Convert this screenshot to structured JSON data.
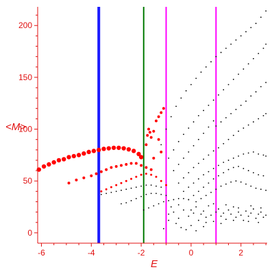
{
  "chart_data": {
    "type": "scatter",
    "title": "",
    "xlabel": "E",
    "ylabel": "<M>",
    "xlim": [
      -6.15,
      3.05
    ],
    "ylim": [
      -10,
      218
    ],
    "xticks": [
      -6,
      -4,
      -2,
      0,
      2
    ],
    "yticks": [
      0,
      50,
      100,
      150,
      200
    ],
    "axis_color": "#e01010",
    "grid": false,
    "vertical_lines": [
      {
        "x": -3.7,
        "color": "#1a1aff"
      },
      {
        "x": -1.9,
        "color": "#007a00"
      },
      {
        "x": -1.0,
        "color": "#ff00ff"
      },
      {
        "x": 1.0,
        "color": "#ff00ff"
      }
    ],
    "series": [
      {
        "color": "#ff0000",
        "marker": "large",
        "points": [
          [
            -6.1,
            61
          ],
          [
            -5.9,
            64
          ],
          [
            -5.7,
            66
          ],
          [
            -5.5,
            68
          ],
          [
            -5.3,
            70
          ],
          [
            -5.1,
            71
          ],
          [
            -4.9,
            73
          ],
          [
            -4.7,
            74
          ],
          [
            -4.5,
            75
          ],
          [
            -4.3,
            76.5
          ],
          [
            -4.1,
            78
          ],
          [
            -3.9,
            79
          ],
          [
            -3.7,
            80
          ],
          [
            -3.5,
            81
          ],
          [
            -3.3,
            81.5
          ],
          [
            -3.1,
            82
          ],
          [
            -2.9,
            82
          ],
          [
            -2.7,
            81.5
          ],
          [
            -2.5,
            80.5
          ],
          [
            -2.3,
            79
          ],
          [
            -2.1,
            76
          ],
          [
            -2.0,
            73
          ]
        ]
      },
      {
        "color": "#ff0000",
        "marker": "medium",
        "points": [
          [
            -4.9,
            48
          ],
          [
            -4.6,
            51
          ],
          [
            -4.3,
            53
          ],
          [
            -4.0,
            55
          ],
          [
            -3.8,
            57
          ],
          [
            -3.6,
            59
          ],
          [
            -3.4,
            61
          ],
          [
            -3.2,
            63
          ],
          [
            -3.0,
            64
          ],
          [
            -2.8,
            65
          ],
          [
            -2.6,
            66
          ],
          [
            -2.4,
            67
          ],
          [
            -2.2,
            67
          ],
          [
            -2.0,
            65
          ],
          [
            -1.8,
            63
          ],
          [
            -1.6,
            61
          ]
        ]
      },
      {
        "color": "#ff0000",
        "marker": "small",
        "points": [
          [
            -3.6,
            40
          ],
          [
            -3.4,
            42
          ],
          [
            -3.2,
            44
          ],
          [
            -3.0,
            46
          ],
          [
            -2.8,
            48
          ],
          [
            -2.6,
            50
          ],
          [
            -2.4,
            52
          ],
          [
            -2.2,
            54
          ],
          [
            -2.0,
            56
          ],
          [
            -1.8,
            57
          ],
          [
            -1.6,
            56
          ],
          [
            -1.4,
            54
          ],
          [
            -1.2,
            50
          ],
          [
            -1.0,
            46
          ]
        ]
      },
      {
        "color": "#ff0000",
        "marker": "medium",
        "points": [
          [
            -1.8,
            85
          ],
          [
            -1.75,
            94
          ],
          [
            -1.7,
            100
          ],
          [
            -1.65,
            97
          ],
          [
            -1.6,
            92
          ],
          [
            -1.5,
            98
          ],
          [
            -1.4,
            108
          ],
          [
            -1.3,
            112
          ],
          [
            -1.2,
            116
          ],
          [
            -1.1,
            120
          ],
          [
            -1.3,
            90
          ],
          [
            -1.2,
            78
          ],
          [
            -1.5,
            72
          ]
        ]
      },
      {
        "color": "#000000",
        "marker": "tiny",
        "points": [
          [
            -1.2,
            85
          ],
          [
            -1.0,
            100
          ],
          [
            -0.8,
            112
          ],
          [
            -0.6,
            122
          ],
          [
            -0.4,
            130
          ],
          [
            -0.2,
            137
          ],
          [
            0.0,
            143
          ],
          [
            0.2,
            149
          ],
          [
            0.4,
            155
          ],
          [
            0.6,
            160
          ],
          [
            0.8,
            165
          ],
          [
            1.0,
            170
          ],
          [
            1.2,
            174
          ],
          [
            1.4,
            178
          ],
          [
            1.6,
            182
          ],
          [
            1.8,
            186
          ],
          [
            2.0,
            190
          ],
          [
            2.2,
            194
          ],
          [
            2.4,
            198
          ],
          [
            2.6,
            202
          ],
          [
            2.8,
            208
          ],
          [
            3.0,
            214
          ]
        ]
      },
      {
        "color": "#000000",
        "marker": "tiny",
        "points": [
          [
            -0.9,
            72
          ],
          [
            -0.7,
            80
          ],
          [
            -0.5,
            88
          ],
          [
            -0.3,
            95
          ],
          [
            -0.1,
            101
          ],
          [
            0.1,
            107
          ],
          [
            0.3,
            113
          ],
          [
            0.5,
            118
          ],
          [
            0.7,
            123
          ],
          [
            0.9,
            128
          ],
          [
            1.1,
            133
          ],
          [
            1.3,
            138
          ],
          [
            1.5,
            143
          ],
          [
            1.7,
            148
          ],
          [
            1.9,
            153
          ],
          [
            2.1,
            158
          ],
          [
            2.3,
            163
          ],
          [
            2.5,
            168
          ],
          [
            2.7,
            173
          ],
          [
            2.9,
            178
          ],
          [
            3.0,
            182
          ]
        ]
      },
      {
        "color": "#000000",
        "marker": "tiny",
        "points": [
          [
            -0.7,
            60
          ],
          [
            -0.5,
            66
          ],
          [
            -0.3,
            72
          ],
          [
            -0.1,
            78
          ],
          [
            0.1,
            84
          ],
          [
            0.3,
            90
          ],
          [
            0.5,
            96
          ],
          [
            0.7,
            102
          ],
          [
            0.9,
            108
          ],
          [
            1.0,
            103
          ],
          [
            1.2,
            107
          ],
          [
            1.4,
            111
          ],
          [
            1.6,
            115
          ],
          [
            1.8,
            119
          ],
          [
            2.0,
            123
          ],
          [
            2.2,
            127
          ],
          [
            2.4,
            132
          ],
          [
            2.6,
            136
          ],
          [
            2.8,
            141
          ],
          [
            3.0,
            145
          ]
        ]
      },
      {
        "color": "#000000",
        "marker": "tiny",
        "points": [
          [
            -0.5,
            48
          ],
          [
            -0.3,
            53
          ],
          [
            -0.1,
            58
          ],
          [
            0.1,
            63
          ],
          [
            0.3,
            67
          ],
          [
            0.5,
            71
          ],
          [
            0.7,
            75
          ],
          [
            0.9,
            79
          ],
          [
            1.1,
            82
          ],
          [
            1.3,
            86
          ],
          [
            1.5,
            90
          ],
          [
            1.7,
            94
          ],
          [
            1.9,
            98
          ],
          [
            2.1,
            101
          ],
          [
            2.3,
            104
          ],
          [
            2.5,
            107
          ],
          [
            2.7,
            110
          ],
          [
            2.9,
            113
          ],
          [
            3.0,
            115
          ]
        ]
      },
      {
        "color": "#000000",
        "marker": "tiny",
        "points": [
          [
            -0.3,
            40
          ],
          [
            -0.1,
            44
          ],
          [
            0.1,
            48
          ],
          [
            0.3,
            52
          ],
          [
            0.5,
            56
          ],
          [
            0.7,
            59
          ],
          [
            0.9,
            62
          ],
          [
            1.1,
            65
          ],
          [
            1.3,
            68
          ],
          [
            1.5,
            70
          ],
          [
            1.7,
            72
          ],
          [
            1.9,
            74
          ],
          [
            2.1,
            76
          ],
          [
            2.3,
            77
          ],
          [
            2.5,
            78
          ],
          [
            2.7,
            76
          ],
          [
            2.9,
            75
          ],
          [
            3.0,
            74
          ]
        ]
      },
      {
        "color": "#000000",
        "marker": "tiny",
        "points": [
          [
            -0.1,
            32
          ],
          [
            0.1,
            36
          ],
          [
            0.3,
            40
          ],
          [
            0.5,
            44
          ],
          [
            0.7,
            48
          ],
          [
            0.9,
            52
          ],
          [
            1.1,
            55
          ],
          [
            1.3,
            58
          ],
          [
            1.5,
            61
          ],
          [
            1.7,
            63
          ],
          [
            1.9,
            64
          ],
          [
            2.1,
            62
          ],
          [
            2.3,
            60
          ],
          [
            2.5,
            58
          ],
          [
            2.7,
            56
          ],
          [
            2.9,
            55
          ]
        ]
      },
      {
        "color": "#000000",
        "marker": "tiny",
        "points": [
          [
            0.2,
            30
          ],
          [
            0.4,
            33
          ],
          [
            0.6,
            36
          ],
          [
            0.8,
            39
          ],
          [
            1.0,
            42
          ],
          [
            1.2,
            45
          ],
          [
            1.4,
            47
          ],
          [
            1.6,
            49
          ],
          [
            1.8,
            50
          ],
          [
            2.0,
            49
          ],
          [
            2.2,
            47
          ],
          [
            2.4,
            45
          ],
          [
            2.6,
            43
          ],
          [
            2.8,
            42
          ],
          [
            3.0,
            41
          ]
        ]
      },
      {
        "color": "#000000",
        "marker": "tiny",
        "points": [
          [
            -3.6,
            37
          ],
          [
            -3.4,
            38
          ],
          [
            -3.2,
            39
          ],
          [
            -3.0,
            40
          ],
          [
            -2.8,
            41
          ],
          [
            -2.6,
            42
          ],
          [
            -2.4,
            43
          ],
          [
            -2.2,
            44
          ],
          [
            -2.0,
            45
          ],
          [
            -1.8,
            46
          ],
          [
            -1.6,
            46
          ],
          [
            -1.4,
            45
          ],
          [
            -1.2,
            44
          ]
        ]
      },
      {
        "color": "#000000",
        "marker": "tiny",
        "points": [
          [
            -2.8,
            28
          ],
          [
            -2.6,
            29
          ],
          [
            -2.4,
            31
          ],
          [
            -2.2,
            33
          ],
          [
            -2.0,
            35
          ],
          [
            -1.8,
            37
          ],
          [
            -1.6,
            38
          ],
          [
            -1.4,
            38
          ],
          [
            -1.2,
            37
          ],
          [
            -1.0,
            36
          ]
        ]
      },
      {
        "color": "#000000",
        "marker": "tiny",
        "points": [
          [
            -1.9,
            22
          ],
          [
            -1.7,
            24
          ],
          [
            -1.5,
            26
          ],
          [
            -1.3,
            28
          ],
          [
            -1.1,
            30
          ],
          [
            -0.9,
            31
          ],
          [
            -0.7,
            32
          ],
          [
            -0.5,
            33
          ],
          [
            -0.3,
            33
          ],
          [
            -0.1,
            32
          ]
        ]
      },
      {
        "color": "#000000",
        "marker": "tiny",
        "points": [
          [
            -0.9,
            18
          ],
          [
            -0.7,
            20
          ],
          [
            -0.5,
            14
          ],
          [
            -0.3,
            22
          ],
          [
            -0.1,
            16
          ],
          [
            0.1,
            19
          ],
          [
            0.2,
            25
          ],
          [
            0.3,
            12
          ],
          [
            0.4,
            18
          ],
          [
            0.5,
            21
          ],
          [
            0.6,
            15
          ],
          [
            0.7,
            26
          ],
          [
            0.8,
            17
          ],
          [
            0.9,
            11
          ],
          [
            1.0,
            20
          ],
          [
            1.1,
            23
          ],
          [
            1.2,
            16
          ],
          [
            1.3,
            19
          ],
          [
            1.4,
            13
          ],
          [
            1.5,
            22
          ],
          [
            1.6,
            18
          ],
          [
            1.7,
            25
          ],
          [
            1.8,
            15
          ],
          [
            1.9,
            20
          ],
          [
            2.0,
            17
          ],
          [
            2.1,
            12
          ],
          [
            2.2,
            21
          ],
          [
            2.3,
            16
          ],
          [
            2.4,
            19
          ],
          [
            2.5,
            23
          ],
          [
            2.6,
            14
          ],
          [
            2.7,
            18
          ],
          [
            2.8,
            20
          ],
          [
            2.9,
            15
          ],
          [
            3.0,
            17
          ],
          [
            -0.8,
            25
          ],
          [
            -0.6,
            9
          ],
          [
            -0.4,
            5
          ],
          [
            -0.2,
            3
          ],
          [
            0.0,
            7
          ],
          [
            0.2,
            2
          ],
          [
            0.5,
            6
          ],
          [
            0.9,
            28
          ],
          [
            1.4,
            27
          ],
          [
            1.9,
            24
          ],
          [
            2.4,
            26
          ],
          [
            2.8,
            24
          ],
          [
            -0.5,
            27
          ],
          [
            0.0,
            22
          ],
          [
            0.6,
            10
          ],
          [
            1.2,
            9
          ],
          [
            1.7,
            12
          ],
          [
            2.3,
            11
          ],
          [
            2.7,
            10
          ],
          [
            -1.1,
            4
          ],
          [
            -0.9,
            12
          ]
        ]
      }
    ]
  }
}
